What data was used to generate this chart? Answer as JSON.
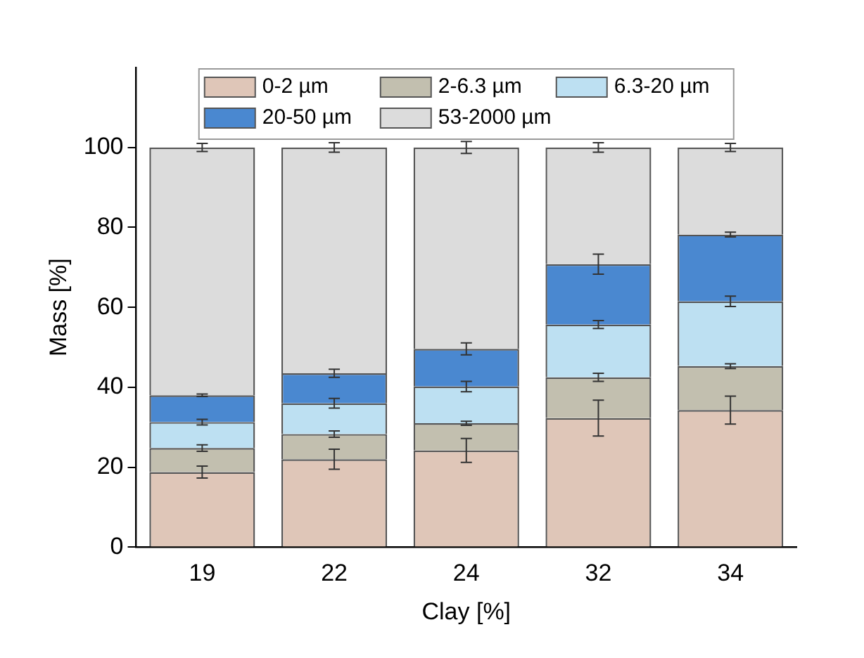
{
  "chart_data": {
    "type": "bar",
    "stacked": true,
    "xlabel": "Clay [%]",
    "ylabel": "Mass [%]",
    "categories": [
      "19",
      "22",
      "24",
      "32",
      "34"
    ],
    "series": [
      {
        "name": "0-2 µm",
        "color": "#dfc6b8",
        "values": [
          18.8,
          22,
          24.2,
          32.3,
          34.3
        ],
        "errors": [
          1.5,
          2.5,
          3,
          4.5,
          3.5
        ]
      },
      {
        "name": "2-6.3 µm",
        "color": "#c2bfaf",
        "values": [
          6,
          6.3,
          6.8,
          10.2,
          11
        ],
        "errors": [
          0.8,
          0.8,
          0.5,
          1,
          0.6
        ]
      },
      {
        "name": "6.3-20 µm",
        "color": "#bde0f2",
        "values": [
          6.5,
          7.7,
          9.2,
          13.2,
          16.2
        ],
        "errors": [
          0.7,
          1.2,
          1.3,
          1,
          1.3
        ]
      },
      {
        "name": "20-50 µm",
        "color": "#4a88d0",
        "values": [
          6.7,
          7.5,
          9.4,
          15.1,
          16.7
        ],
        "errors": [
          0.3,
          1,
          1.5,
          2.5,
          0.6
        ]
      },
      {
        "name": "53-2000 µm",
        "color": "#dcdcdc",
        "values": [
          62,
          56.5,
          50.4,
          29.2,
          21.8
        ],
        "errors": [
          1,
          1.2,
          1.5,
          1.2,
          1
        ]
      }
    ],
    "ylim": [
      0,
      120
    ],
    "yticks": [
      0,
      20,
      40,
      60,
      80,
      100
    ],
    "grid": false,
    "legend": "top"
  }
}
